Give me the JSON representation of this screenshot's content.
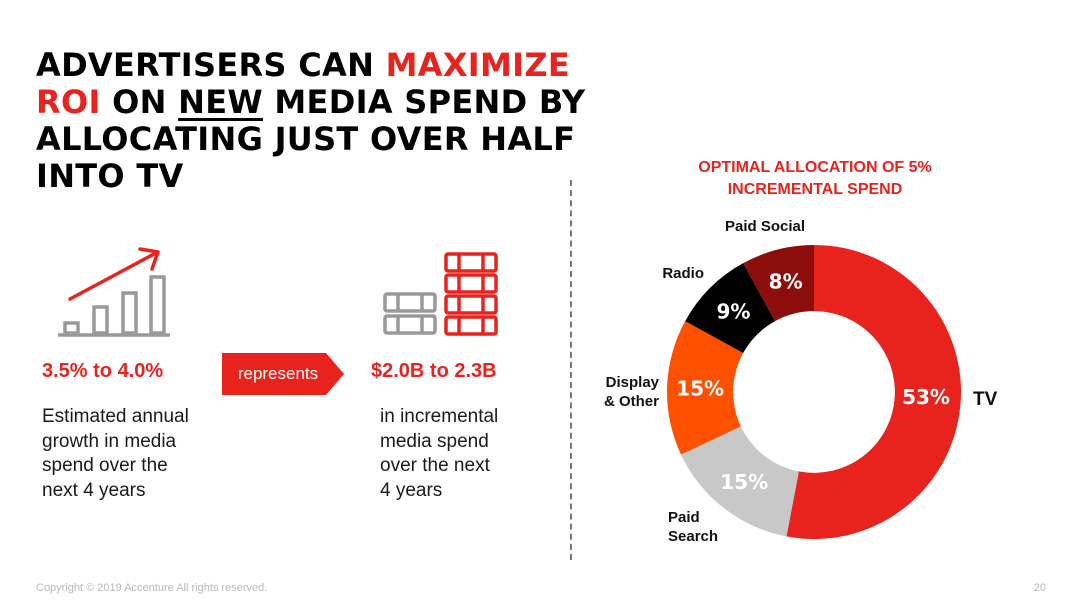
{
  "slide": {
    "title_parts": {
      "p1": "ADVERTISERS CAN ",
      "p2": "MAXIMIZE",
      "p3": "ROI",
      "p4": " ON ",
      "p5": "NEW",
      "p6": " MEDIA SPEND BY ALLOCATING JUST OVER HALF INTO TV"
    },
    "growth_stat": "3.5% to 4.0%",
    "growth_desc_lines": [
      "Estimated annual",
      "growth in media",
      "spend over the",
      "next 4 years"
    ],
    "arrow_label": "represents",
    "spend_stat": "$2.0B to 2.3B",
    "spend_desc_lines": [
      "in incremental",
      "media spend",
      "over the next",
      "4 years"
    ],
    "footer": "Copyright © 2019 Accenture All rights reserved.",
    "page_number": "20",
    "colors": {
      "accent": "#e8231e",
      "gray": "#999999"
    },
    "icons": {
      "growth": "bar-chart-growth-icon",
      "money": "money-stacks-icon"
    }
  },
  "chart_data": {
    "type": "pie",
    "title_lines": [
      "OPTIMAL ALLOCATION OF 5%",
      "INCREMENTAL SPEND"
    ],
    "categories": [
      "TV",
      "Paid Search",
      "Display & Other",
      "Radio",
      "Paid Social"
    ],
    "values": [
      53,
      15,
      15,
      9,
      8
    ],
    "value_labels": [
      "53%",
      "15%",
      "15%",
      "9%",
      "8%"
    ],
    "category_labels": [
      [
        "TV"
      ],
      [
        "Paid",
        "Search"
      ],
      [
        "Display",
        "& Other"
      ],
      [
        "Radio"
      ],
      [
        "Paid Social"
      ]
    ],
    "colors": [
      "#e8231e",
      "#c8c8c8",
      "#ff5000",
      "#000000",
      "#8c0e0c"
    ],
    "hole": 0.55,
    "start_angle_deg": 0,
    "direction": "clockwise"
  }
}
